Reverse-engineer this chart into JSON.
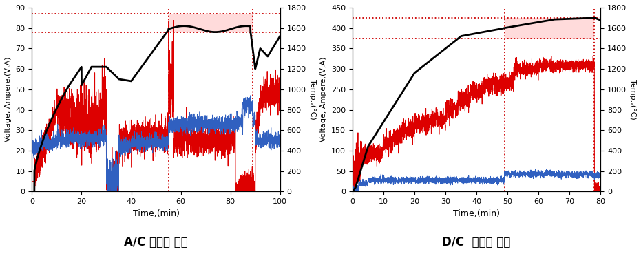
{
  "chart1": {
    "title": "A/C 환원로 실험",
    "xlabel": "Time,(min)",
    "ylabel_left": "Voltage, Ampere,(V,A)",
    "ylabel_right": "Temp.,(°C)",
    "xlim": [
      0,
      100
    ],
    "ylim_left": [
      0,
      90
    ],
    "ylim_right": [
      0,
      1800
    ],
    "xticks": [
      0,
      20,
      40,
      60,
      80,
      100
    ],
    "yticks_left": [
      0,
      10,
      20,
      30,
      40,
      50,
      60,
      70,
      80,
      90
    ],
    "yticks_right": [
      0,
      200,
      400,
      600,
      800,
      1000,
      1200,
      1400,
      1600,
      1800
    ],
    "hline1": 78,
    "hline2": 87,
    "vline1": 55,
    "vline2": 89
  },
  "chart2": {
    "title": "D/C  환원로 실험",
    "xlabel": "Time,(min)",
    "ylabel_left": "Voltage, Ampere,(V,A)",
    "ylabel_right": "Temp.,(°C)",
    "xlim": [
      0,
      80
    ],
    "ylim_left": [
      0,
      450
    ],
    "ylim_right": [
      0,
      1800
    ],
    "xticks": [
      0,
      10,
      20,
      30,
      40,
      50,
      60,
      70,
      80
    ],
    "yticks_left": [
      0,
      50,
      100,
      150,
      200,
      250,
      300,
      350,
      400,
      450
    ],
    "yticks_right": [
      0,
      200,
      400,
      600,
      800,
      1000,
      1200,
      1400,
      1600,
      1800
    ],
    "hline1": 375,
    "hline2": 425,
    "vline1": 49,
    "vline2": 78
  }
}
